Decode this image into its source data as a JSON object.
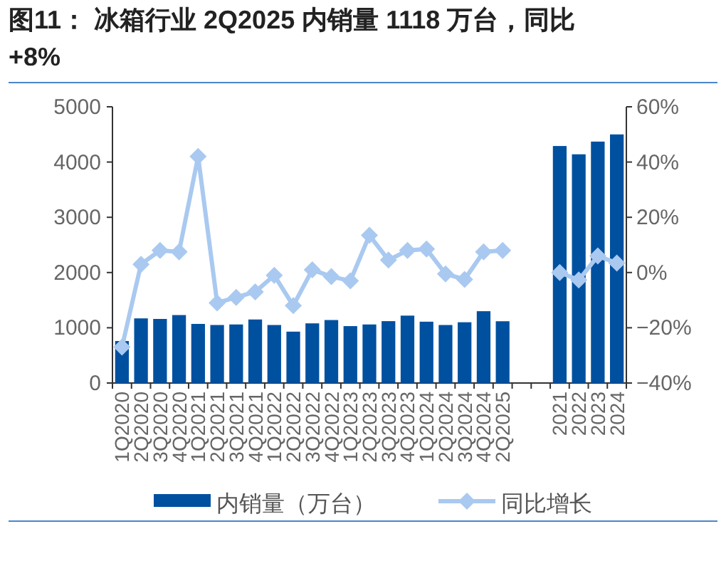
{
  "chart_data": {
    "type": "bar",
    "title": "图11：    冰箱行业 2Q2025 内销量 1118 万台，同比+8%",
    "categories": [
      "1Q2020",
      "2Q2020",
      "3Q2020",
      "4Q2020",
      "1Q2021",
      "2Q2021",
      "3Q2021",
      "4Q2021",
      "1Q2022",
      "2Q2022",
      "3Q2022",
      "4Q2022",
      "1Q2023",
      "2Q2023",
      "3Q2023",
      "4Q2023",
      "1Q2024",
      "2Q2024",
      "3Q2024",
      "4Q2024",
      "2Q2025",
      null,
      null,
      "2021",
      "2022",
      "2023",
      "2024"
    ],
    "series": [
      {
        "name": "内销量（万台）",
        "color": "#0050a0",
        "values": [
          760,
          1170,
          1160,
          1230,
          1070,
          1050,
          1060,
          1150,
          1050,
          930,
          1080,
          1140,
          1030,
          1060,
          1120,
          1220,
          1110,
          1050,
          1100,
          1300,
          1118,
          null,
          null,
          4290,
          4140,
          4370,
          4500
        ]
      },
      {
        "name": "同比增长",
        "type": "line",
        "axis": "y2",
        "color": "#a9c9f0",
        "values": [
          -27,
          3,
          8,
          7.5,
          42,
          -11,
          -9,
          -7,
          -1,
          -12,
          1,
          -1.5,
          -3,
          13.5,
          4.5,
          8,
          8.5,
          -0.5,
          -2.5,
          7.5,
          8,
          null,
          null,
          0,
          -2.7,
          6,
          3.4
        ]
      }
    ],
    "ylim": [
      0,
      5000
    ],
    "yticks": [
      0,
      1000,
      2000,
      3000,
      4000,
      5000
    ],
    "y2lim": [
      -40,
      60
    ],
    "y2ticks": [
      {
        "value": -40,
        "label": "−40%"
      },
      {
        "value": -20,
        "label": "−20%"
      },
      {
        "value": 0,
        "label": "0%"
      },
      {
        "value": 20,
        "label": "20%"
      },
      {
        "value": 40,
        "label": "40%"
      },
      {
        "value": 60,
        "label": "60%"
      }
    ],
    "legend": "bottom",
    "marker": "diamond",
    "line_style": "solid"
  }
}
